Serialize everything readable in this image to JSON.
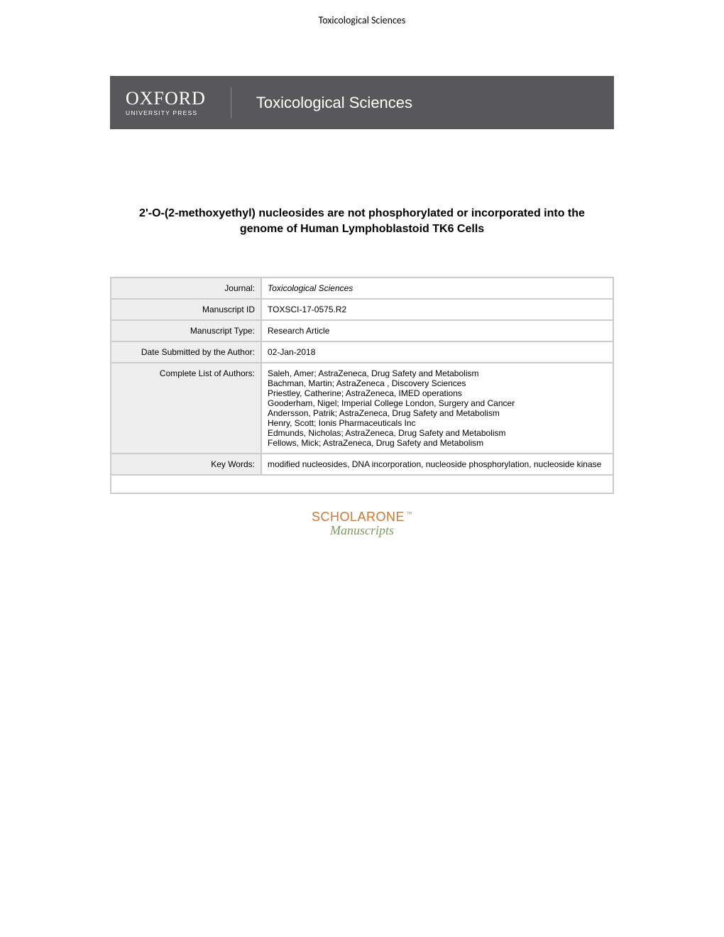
{
  "header": {
    "journal_header": "Toxicological Sciences"
  },
  "banner": {
    "publisher_main": "OXFORD",
    "publisher_sub": "UNIVERSITY PRESS",
    "journal_title": "Toxicological Sciences"
  },
  "article": {
    "title": "2'-O-(2-methoxyethyl) nucleosides are not phosphorylated or incorporated into the genome of Human Lymphoblastoid TK6 Cells"
  },
  "meta": {
    "rows": [
      {
        "label": "Journal:",
        "value": "Toxicological Sciences",
        "italic": true
      },
      {
        "label": "Manuscript ID",
        "value": "TOXSCI-17-0575.R2"
      },
      {
        "label": "Manuscript Type:",
        "value": "Research Article"
      },
      {
        "label": "Date Submitted by the Author:",
        "value": "02-Jan-2018"
      }
    ],
    "authors_label": "Complete List of Authors:",
    "authors": [
      "Saleh, Amer; AstraZeneca, Drug Safety and Metabolism",
      "Bachman, Martin; AstraZeneca , Discovery Sciences",
      "Priestley, Catherine; AstraZeneca, IMED operations",
      "Gooderham, Nigel; Imperial College London, Surgery and Cancer",
      "Andersson, Patrik; AstraZeneca, Drug Safety and Metabolism",
      "Henry, Scott; Ionis Pharmaceuticals Inc",
      "Edmunds, Nicholas; AstraZeneca, Drug Safety and Metabolism",
      "Fellows, Mick; AstraZeneca, Drug Safety and Metabolism"
    ],
    "keywords_label": "Key Words:",
    "keywords_value": "modified nucleosides, DNA incorporation, nucleoside phosphorylation, nucleoside kinase"
  },
  "footer": {
    "scholarone_main": "SCHOLARONE",
    "scholarone_tm": "™",
    "scholarone_sub": "Manuscripts"
  },
  "colors": {
    "banner_bg": "#58585a",
    "label_bg": "#eeeeee",
    "table_border": "#cccccc",
    "scholarone_orange": "#ca7832",
    "scholarone_green": "#7c9c60"
  }
}
